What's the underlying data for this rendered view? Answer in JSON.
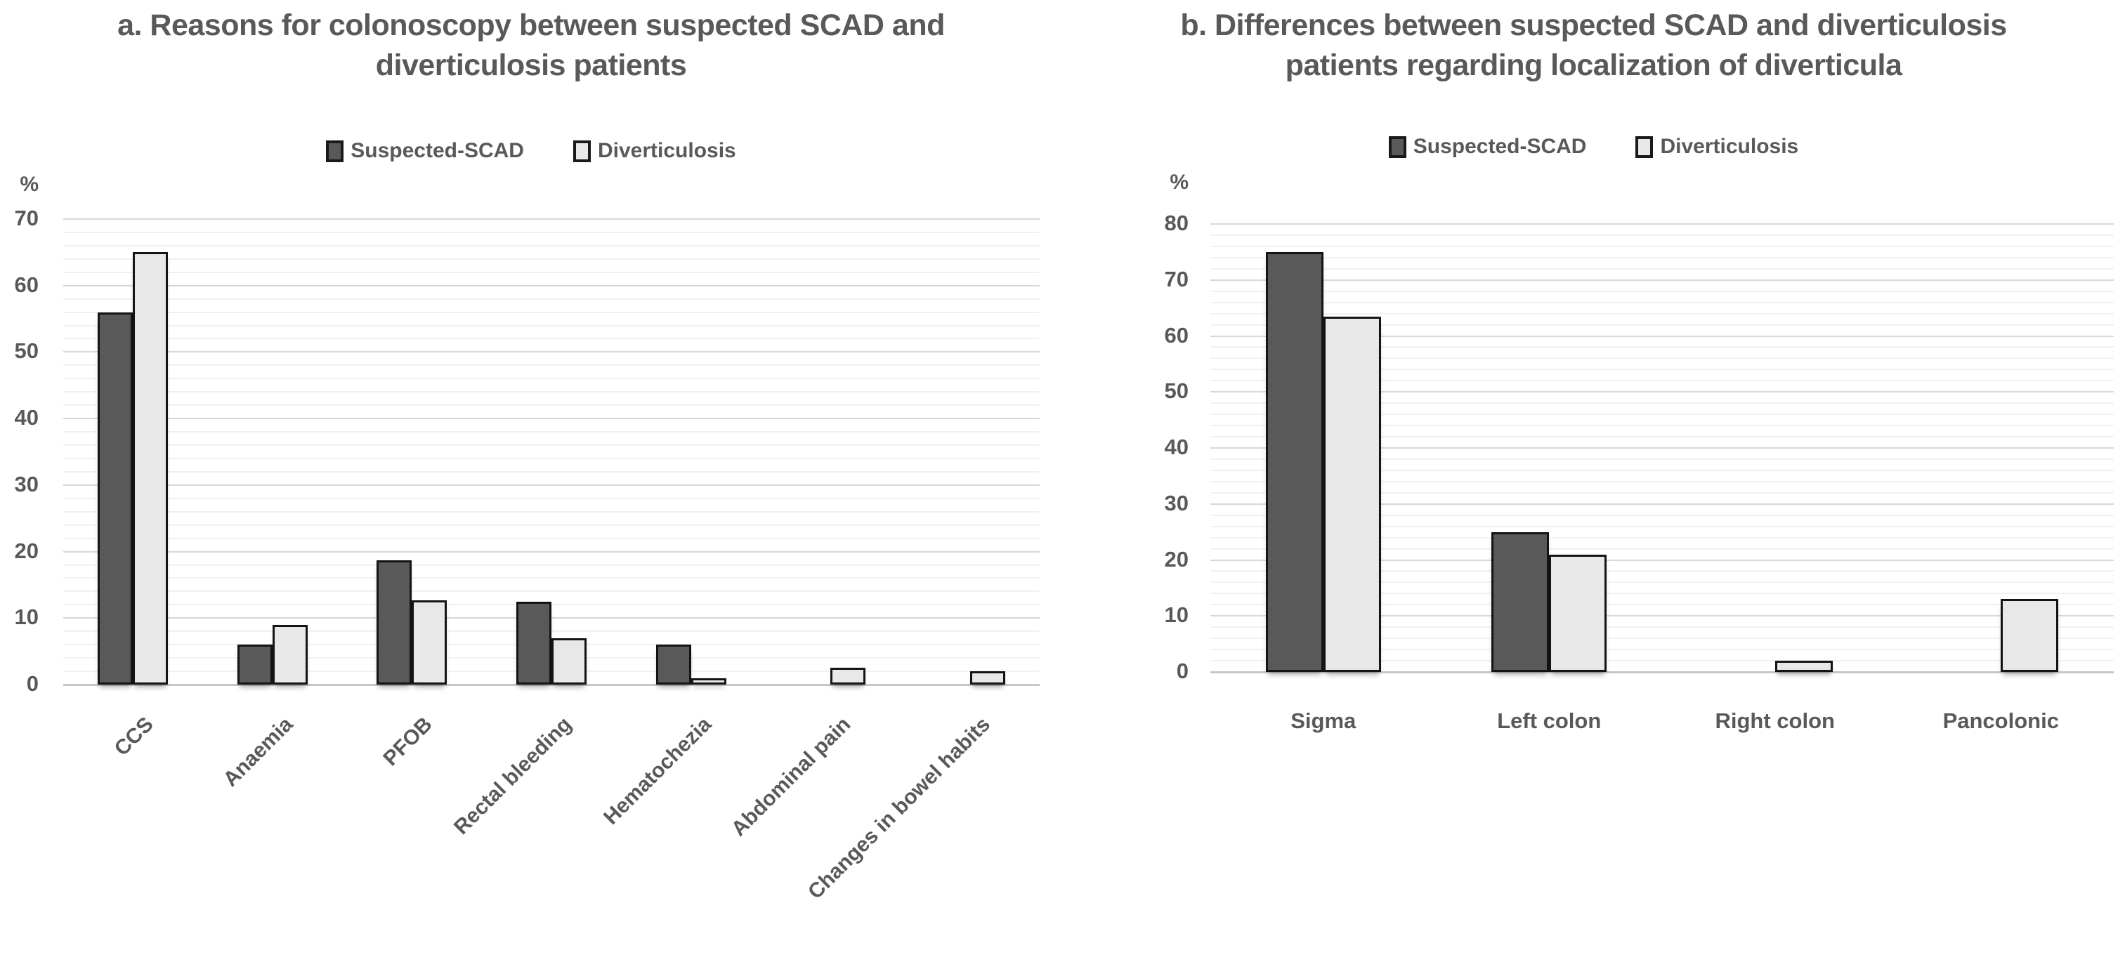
{
  "page": {
    "background": "#ffffff",
    "text_color": "#595959"
  },
  "chart_data": [
    {
      "id": "a",
      "type": "bar",
      "title": "a. Reasons for colonoscopy between suspected SCAD and diverticulosis patients",
      "title_lines": [
        "a. Reasons for colonoscopy between suspected SCAD and",
        "diverticulosis patients"
      ],
      "ylabel": "%",
      "xlabel": "",
      "ylim": [
        0,
        70
      ],
      "ytick_step": 10,
      "minor_gridline_step": 2,
      "yticks": [
        0,
        10,
        20,
        30,
        40,
        50,
        60,
        70
      ],
      "grid": true,
      "legend_position": "top",
      "x_label_rotation": -45,
      "categories": [
        "CCS",
        "Anaemia",
        "PFOB",
        "Rectal bleeding",
        "Hematochezia",
        "Abdominal pain",
        "Changes in bowel habits"
      ],
      "series": [
        {
          "name": "Suspected-SCAD",
          "color": "#595959",
          "border_color": "#141414",
          "values": [
            56,
            6,
            18.7,
            12.5,
            6,
            0,
            0
          ]
        },
        {
          "name": "Diverticulosis",
          "color": "#e8e8e8",
          "border_color": "#141414",
          "values": [
            65,
            9,
            12.7,
            7,
            1,
            2.5,
            2
          ]
        }
      ]
    },
    {
      "id": "b",
      "type": "bar",
      "title": "b. Differences between suspected SCAD and diverticulosis patients regarding localization of diverticula",
      "title_lines": [
        "b. Differences between suspected SCAD and diverticulosis",
        "patients regarding localization of diverticula"
      ],
      "ylabel": "%",
      "xlabel": "",
      "ylim": [
        0,
        80
      ],
      "ytick_step": 10,
      "minor_gridline_step": 2,
      "yticks": [
        0,
        10,
        20,
        30,
        40,
        50,
        60,
        70,
        80
      ],
      "grid": true,
      "legend_position": "top",
      "x_label_rotation": 0,
      "categories": [
        "Sigma",
        "Left colon",
        "Right colon",
        "Pancolonic"
      ],
      "series": [
        {
          "name": "Suspected-SCAD",
          "color": "#595959",
          "border_color": "#141414",
          "values": [
            75,
            25,
            0,
            0
          ]
        },
        {
          "name": "Diverticulosis",
          "color": "#e8e8e8",
          "border_color": "#141414",
          "values": [
            63.5,
            21,
            2,
            13
          ]
        }
      ]
    }
  ]
}
